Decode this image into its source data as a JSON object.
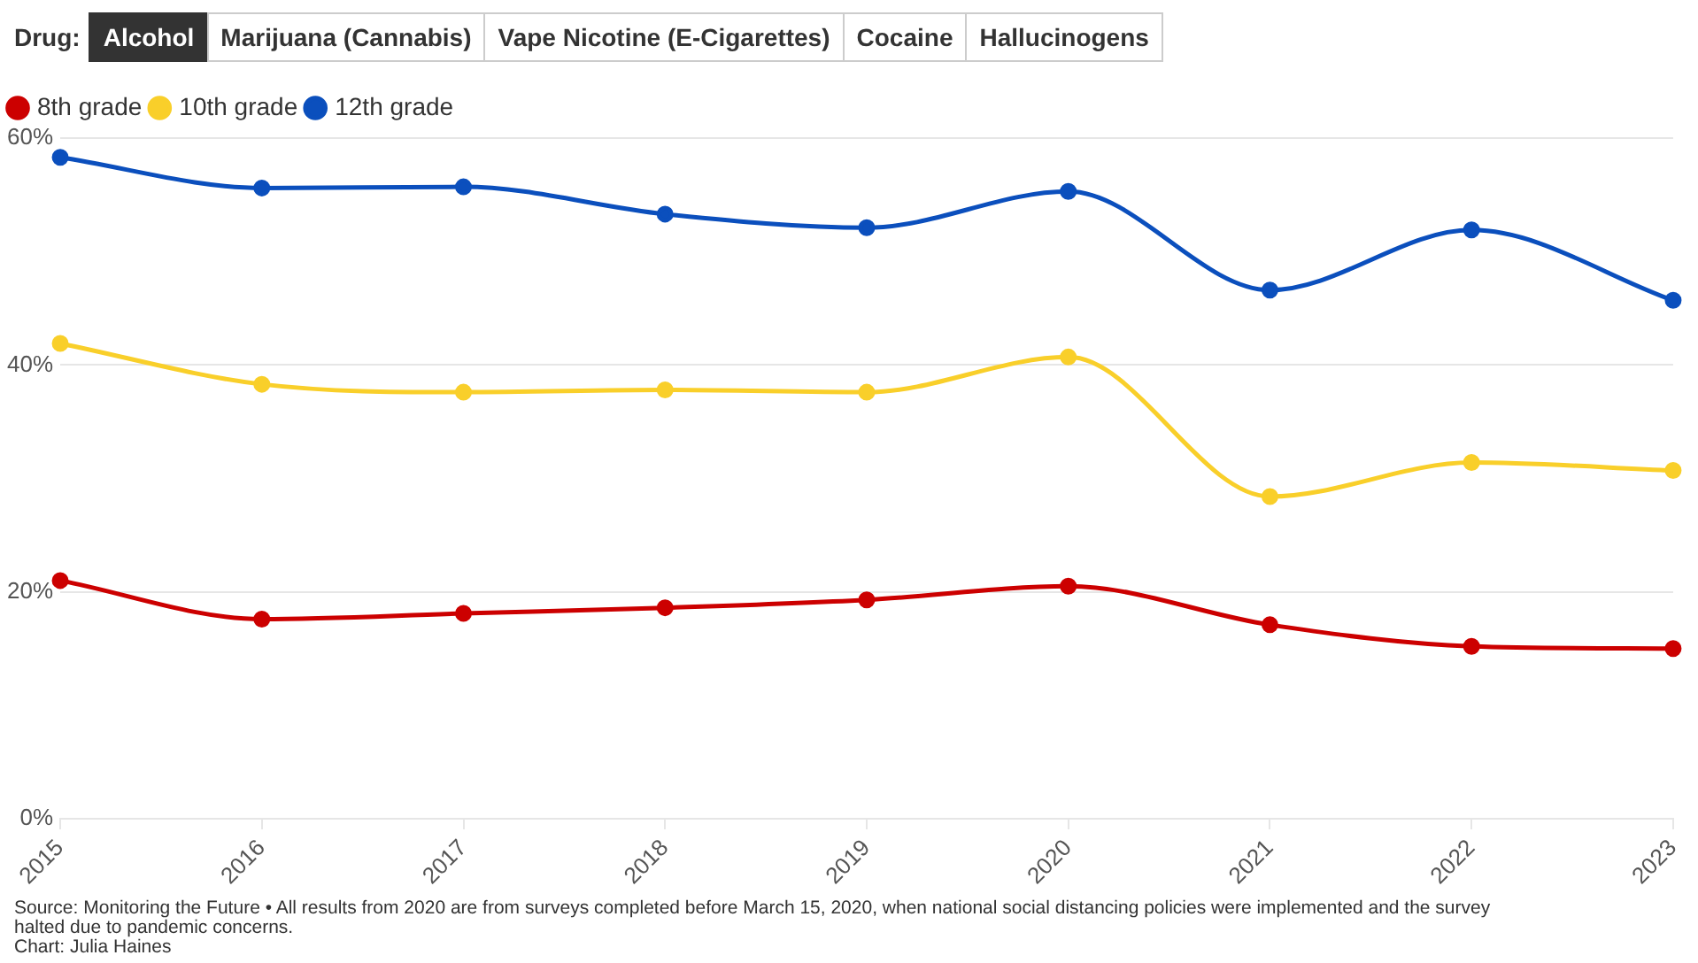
{
  "chart_data": {
    "type": "line",
    "categories": [
      "2015",
      "2016",
      "2017",
      "2018",
      "2019",
      "2020",
      "2021",
      "2022",
      "2023"
    ],
    "series": [
      {
        "name": "8th grade",
        "color": "#cc0000",
        "values": [
          21.0,
          17.6,
          18.1,
          18.6,
          19.3,
          20.5,
          17.1,
          15.2,
          15.0
        ]
      },
      {
        "name": "10th grade",
        "color": "#f9cf2a",
        "values": [
          41.9,
          38.3,
          37.6,
          37.8,
          37.6,
          40.7,
          28.4,
          31.4,
          30.7
        ]
      },
      {
        "name": "12th grade",
        "color": "#0b4fbd",
        "values": [
          58.3,
          55.6,
          55.7,
          53.3,
          52.1,
          55.3,
          46.6,
          51.9,
          45.7
        ]
      }
    ],
    "ylim": [
      0,
      60
    ],
    "yticks": [
      {
        "value": 0,
        "label": "0%"
      },
      {
        "value": 20,
        "label": "20%"
      },
      {
        "value": 40,
        "label": "40%"
      },
      {
        "value": 60,
        "label": "60%"
      }
    ],
    "grid": "y",
    "legend": "top left",
    "marker": "circle",
    "line_style": "solid",
    "annotations": [
      "Drug:",
      "Alcohol",
      "Marijuana (Cannabis)",
      "Vape Nicotine (E-Cigarettes)",
      "Cocaine",
      "Hallucinogens",
      "Source: Monitoring the Future • All results from 2020 are from surveys completed before March 15, 2020, when national social distancing policies were implemented and the survey halted due to pandemic concerns.",
      "Chart: Julia Haines"
    ]
  }
}
